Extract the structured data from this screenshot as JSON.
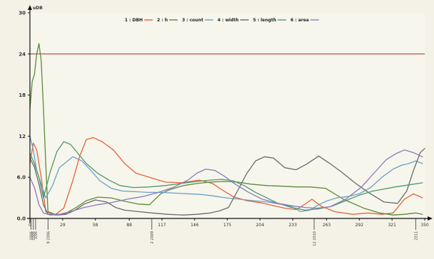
{
  "chart_data": {
    "type": "line",
    "ylabel": "uDB",
    "ylim": [
      0,
      30
    ],
    "xlim": [
      0,
      350
    ],
    "yticks": [
      {
        "v": 0,
        "label": "0.0"
      },
      {
        "v": 6,
        "label": "6.0"
      },
      {
        "v": 12,
        "label": "12"
      },
      {
        "v": 18,
        "label": "18"
      },
      {
        "v": 24,
        "label": "24"
      },
      {
        "v": 30,
        "label": "30"
      }
    ],
    "xticks": [
      {
        "v": 0,
        "label": "0"
      },
      {
        "v": 29,
        "label": "29"
      },
      {
        "v": 58,
        "label": "58"
      },
      {
        "v": 88,
        "label": "88"
      },
      {
        "v": 117,
        "label": "117"
      },
      {
        "v": 146,
        "label": "146"
      },
      {
        "v": 175,
        "label": "175"
      },
      {
        "v": 204,
        "label": "204"
      },
      {
        "v": 233,
        "label": "233"
      },
      {
        "v": 263,
        "label": "263"
      },
      {
        "v": 292,
        "label": "292"
      },
      {
        "v": 321,
        "label": "321"
      },
      {
        "v": 350,
        "label": "350"
      }
    ],
    "threshold": 24,
    "threshold_color": "#b04040",
    "x_markers": [
      {
        "x": 1,
        "label": "2006"
      },
      {
        "x": 3,
        "label": "2006"
      },
      {
        "x": 5,
        "label": "3/06"
      },
      {
        "x": 16,
        "label": "9 2006"
      },
      {
        "x": 108,
        "label": "2 2009"
      },
      {
        "x": 252,
        "label": "12 2010"
      },
      {
        "x": 342,
        "label": "2011"
      }
    ],
    "series": [
      {
        "name": "1 : DBH",
        "color": "#e8603a",
        "points": [
          [
            0,
            8
          ],
          [
            3,
            11
          ],
          [
            6,
            10
          ],
          [
            10,
            6
          ],
          [
            14,
            1
          ],
          [
            22,
            0.5
          ],
          [
            30,
            1.5
          ],
          [
            38,
            5.5
          ],
          [
            44,
            9
          ],
          [
            50,
            11.5
          ],
          [
            56,
            11.8
          ],
          [
            64,
            11.2
          ],
          [
            74,
            10
          ],
          [
            84,
            8
          ],
          [
            94,
            6.6
          ],
          [
            110,
            5.8
          ],
          [
            120,
            5.3
          ],
          [
            134,
            5.2
          ],
          [
            150,
            5.6
          ],
          [
            162,
            5.1
          ],
          [
            170,
            4.2
          ],
          [
            180,
            3.2
          ],
          [
            192,
            2.6
          ],
          [
            204,
            2.3
          ],
          [
            215,
            1.9
          ],
          [
            226,
            1.5
          ],
          [
            236,
            1.3
          ],
          [
            244,
            2.1
          ],
          [
            250,
            2.8
          ],
          [
            258,
            1.8
          ],
          [
            270,
            1.0
          ],
          [
            286,
            0.6
          ],
          [
            300,
            0.8
          ],
          [
            312,
            0.6
          ],
          [
            322,
            0.8
          ],
          [
            332,
            2.8
          ],
          [
            340,
            3.6
          ],
          [
            348,
            3.0
          ]
        ]
      },
      {
        "name": "2 : h",
        "color": "#5a8a3a",
        "points": [
          [
            0,
            16
          ],
          [
            2,
            20
          ],
          [
            4,
            21
          ],
          [
            6,
            24
          ],
          [
            8,
            25.5
          ],
          [
            10,
            23
          ],
          [
            12,
            16
          ],
          [
            14,
            8
          ],
          [
            16,
            1
          ],
          [
            22,
            0.6
          ],
          [
            30,
            0.6
          ],
          [
            40,
            1.5
          ],
          [
            50,
            2.6
          ],
          [
            60,
            3.1
          ],
          [
            72,
            3.0
          ],
          [
            84,
            2.5
          ],
          [
            96,
            2.1
          ],
          [
            106,
            2.0
          ],
          [
            116,
            3.6
          ],
          [
            124,
            4.2
          ],
          [
            136,
            4.8
          ],
          [
            148,
            5.1
          ],
          [
            160,
            5.3
          ],
          [
            172,
            5.4
          ],
          [
            184,
            5.3
          ],
          [
            196,
            5.0
          ],
          [
            210,
            4.8
          ],
          [
            224,
            4.7
          ],
          [
            236,
            4.6
          ],
          [
            248,
            4.6
          ],
          [
            262,
            4.4
          ],
          [
            278,
            2.8
          ],
          [
            296,
            1.5
          ],
          [
            310,
            0.8
          ],
          [
            322,
            0.5
          ],
          [
            332,
            0.6
          ],
          [
            342,
            0.8
          ],
          [
            348,
            0.6
          ]
        ]
      },
      {
        "name": "3 : count",
        "color": "#6aa0c8",
        "points": [
          [
            0,
            12
          ],
          [
            3,
            10
          ],
          [
            6,
            7
          ],
          [
            10,
            5
          ],
          [
            14,
            3
          ],
          [
            20,
            4.8
          ],
          [
            26,
            7.4
          ],
          [
            32,
            8.2
          ],
          [
            38,
            9
          ],
          [
            46,
            8.4
          ],
          [
            54,
            7.0
          ],
          [
            62,
            5.5
          ],
          [
            72,
            4.4
          ],
          [
            82,
            4.0
          ],
          [
            94,
            3.9
          ],
          [
            104,
            3.8
          ],
          [
            116,
            3.8
          ],
          [
            128,
            3.7
          ],
          [
            140,
            3.6
          ],
          [
            152,
            3.5
          ],
          [
            162,
            3.3
          ],
          [
            174,
            3.0
          ],
          [
            186,
            2.8
          ],
          [
            198,
            2.6
          ],
          [
            210,
            2.4
          ],
          [
            222,
            2.1
          ],
          [
            232,
            1.7
          ],
          [
            240,
            1.0
          ],
          [
            248,
            1.2
          ],
          [
            256,
            2.0
          ],
          [
            264,
            2.6
          ],
          [
            272,
            3.0
          ],
          [
            282,
            3.2
          ],
          [
            292,
            3.6
          ],
          [
            302,
            4.5
          ],
          [
            312,
            6.0
          ],
          [
            322,
            7.2
          ],
          [
            330,
            7.8
          ],
          [
            336,
            8.0
          ],
          [
            342,
            8.4
          ],
          [
            348,
            8.0
          ]
        ]
      },
      {
        "name": "4 : width",
        "color": "#6a6a6a",
        "points": [
          [
            0,
            8.8
          ],
          [
            4,
            7.5
          ],
          [
            8,
            5
          ],
          [
            12,
            2
          ],
          [
            16,
            0.6
          ],
          [
            24,
            0.5
          ],
          [
            32,
            0.6
          ],
          [
            40,
            1.2
          ],
          [
            48,
            2.1
          ],
          [
            58,
            2.7
          ],
          [
            68,
            2.4
          ],
          [
            76,
            1.6
          ],
          [
            84,
            1.2
          ],
          [
            96,
            1.0
          ],
          [
            108,
            0.8
          ],
          [
            122,
            0.6
          ],
          [
            136,
            0.5
          ],
          [
            148,
            0.6
          ],
          [
            160,
            0.8
          ],
          [
            168,
            1.1
          ],
          [
            176,
            1.6
          ],
          [
            184,
            4.0
          ],
          [
            192,
            6.5
          ],
          [
            200,
            8.4
          ],
          [
            208,
            9.0
          ],
          [
            216,
            8.8
          ],
          [
            226,
            7.4
          ],
          [
            236,
            7.1
          ],
          [
            246,
            8.0
          ],
          [
            256,
            9.1
          ],
          [
            266,
            8.0
          ],
          [
            276,
            6.8
          ],
          [
            288,
            5.2
          ],
          [
            300,
            3.8
          ],
          [
            314,
            2.4
          ],
          [
            326,
            2.2
          ],
          [
            334,
            4.0
          ],
          [
            340,
            7.0
          ],
          [
            346,
            9.6
          ],
          [
            350,
            10.2
          ]
        ]
      },
      {
        "name": "5 : length",
        "color": "#4a9a6a",
        "points": [
          [
            0,
            9.5
          ],
          [
            4,
            8
          ],
          [
            8,
            6
          ],
          [
            12,
            3
          ],
          [
            18,
            6.8
          ],
          [
            24,
            9.8
          ],
          [
            30,
            11.2
          ],
          [
            36,
            10.8
          ],
          [
            42,
            9.6
          ],
          [
            50,
            8.0
          ],
          [
            60,
            6.6
          ],
          [
            70,
            5.6
          ],
          [
            80,
            4.8
          ],
          [
            92,
            4.5
          ],
          [
            106,
            4.6
          ],
          [
            120,
            4.8
          ],
          [
            134,
            5.1
          ],
          [
            148,
            5.4
          ],
          [
            160,
            5.6
          ],
          [
            170,
            5.7
          ],
          [
            180,
            5.5
          ],
          [
            190,
            4.8
          ],
          [
            200,
            3.8
          ],
          [
            210,
            3.0
          ],
          [
            220,
            2.2
          ],
          [
            232,
            1.6
          ],
          [
            244,
            1.2
          ],
          [
            256,
            1.4
          ],
          [
            268,
            1.8
          ],
          [
            280,
            2.6
          ],
          [
            292,
            3.4
          ],
          [
            304,
            4.0
          ],
          [
            314,
            4.3
          ],
          [
            324,
            4.6
          ],
          [
            332,
            4.8
          ],
          [
            340,
            5.0
          ],
          [
            348,
            5.2
          ]
        ]
      },
      {
        "name": "6 : area",
        "color": "#8a7ac0",
        "points": [
          [
            0,
            6
          ],
          [
            4,
            4.5
          ],
          [
            8,
            2
          ],
          [
            12,
            0.8
          ],
          [
            18,
            0.5
          ],
          [
            26,
            0.6
          ],
          [
            36,
            1.0
          ],
          [
            48,
            1.6
          ],
          [
            60,
            2.0
          ],
          [
            72,
            2.3
          ],
          [
            86,
            2.8
          ],
          [
            100,
            3.2
          ],
          [
            114,
            3.8
          ],
          [
            128,
            4.6
          ],
          [
            140,
            5.6
          ],
          [
            148,
            6.6
          ],
          [
            156,
            7.2
          ],
          [
            164,
            7.0
          ],
          [
            172,
            6.2
          ],
          [
            182,
            5.0
          ],
          [
            194,
            3.8
          ],
          [
            206,
            2.8
          ],
          [
            220,
            2.2
          ],
          [
            234,
            1.8
          ],
          [
            244,
            1.6
          ],
          [
            254,
            1.5
          ],
          [
            266,
            1.7
          ],
          [
            280,
            2.8
          ],
          [
            294,
            4.6
          ],
          [
            306,
            6.8
          ],
          [
            316,
            8.6
          ],
          [
            324,
            9.4
          ],
          [
            332,
            10.0
          ],
          [
            340,
            9.6
          ],
          [
            348,
            9.0
          ]
        ]
      }
    ]
  }
}
